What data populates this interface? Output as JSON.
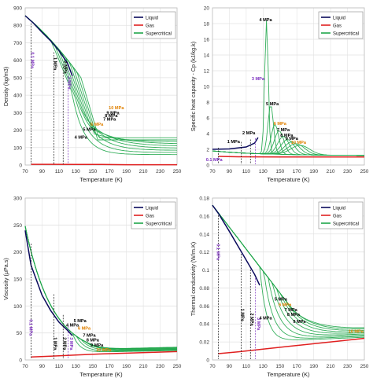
{
  "chart_data": [
    {
      "id": "density",
      "type": "line",
      "xlabel": "Temperature (K)",
      "ylabel": "Density (kg/m3)",
      "xlim": [
        70,
        250
      ],
      "ylim": [
        0,
        900
      ],
      "xticks": [
        "70",
        "90",
        "110",
        "130",
        "150",
        "170",
        "190",
        "210",
        "230",
        "250"
      ],
      "yticks": [
        "0",
        "100",
        "200",
        "300",
        "400",
        "500",
        "600",
        "700",
        "800",
        "900"
      ],
      "legend": [
        "Liquid",
        "Gas",
        "Supercritical"
      ],
      "legend_position": "top-right",
      "grid": true,
      "series": [
        {
          "name": "Liquid",
          "x": [
            70,
            80,
            90,
            100,
            110,
            120,
            126
          ],
          "y": [
            855,
            812,
            760,
            712,
            655,
            585,
            510
          ]
        },
        {
          "name": "Gas",
          "x": [
            77,
            100,
            130,
            160,
            190,
            250
          ],
          "y": [
            4,
            4,
            3,
            3,
            2,
            2
          ]
        }
      ],
      "annotations": [
        {
          "text": "0.1 MPa",
          "color": "#7b2fbf",
          "x": 77,
          "y": 600
        },
        {
          "text": "1 MPa",
          "color": "#000000",
          "x": 104,
          "y": 580
        },
        {
          "text": "2 MPa",
          "color": "#000000",
          "x": 116,
          "y": 560
        },
        {
          "text": "3 MPa",
          "color": "#7b2fbf",
          "x": 121,
          "y": 470
        },
        {
          "text": "10 MPa",
          "color": "#e08000",
          "x": 178,
          "y": 320
        },
        {
          "text": "9 MPa",
          "color": "#000000",
          "x": 174,
          "y": 290
        },
        {
          "text": "8 MPa",
          "color": "#000000",
          "x": 172,
          "y": 275
        },
        {
          "text": "7 MPa",
          "color": "#000000",
          "x": 170,
          "y": 255
        },
        {
          "text": "6 MPa",
          "color": "#e08000",
          "x": 155,
          "y": 225
        },
        {
          "text": "5 MPa",
          "color": "#000000",
          "x": 146,
          "y": 195
        },
        {
          "text": "4 MPa",
          "color": "#000000",
          "x": 136,
          "y": 150
        }
      ]
    },
    {
      "id": "cp",
      "type": "line",
      "xlabel": "Temperature (K)",
      "ylabel": "Specific heat capacity - Cp (kJ/kg.k)",
      "xlim": [
        70,
        250
      ],
      "ylim": [
        0,
        20
      ],
      "xticks": [
        "70",
        "90",
        "110",
        "130",
        "150",
        "170",
        "190",
        "210",
        "230",
        "250"
      ],
      "yticks": [
        "0",
        "2",
        "4",
        "6",
        "8",
        "10",
        "12",
        "14",
        "16",
        "18",
        "20"
      ],
      "legend": [
        "Liquid",
        "Gas",
        "Supercritical"
      ],
      "legend_position": "top-right",
      "grid": true,
      "series": [
        {
          "name": "Liquid",
          "x": [
            70,
            90,
            110,
            120,
            124
          ],
          "y": [
            2.0,
            2.05,
            2.3,
            2.8,
            3.5
          ]
        },
        {
          "name": "Gas",
          "x": [
            77,
            100,
            126,
            150,
            250
          ],
          "y": [
            1.1,
            1.05,
            1.04,
            1.03,
            1.03
          ]
        }
      ],
      "annotations": [
        {
          "text": "4 MPa",
          "color": "#000000",
          "x": 133,
          "y": 18.3
        },
        {
          "text": "3 MPa",
          "color": "#7b2fbf",
          "x": 124,
          "y": 10.8
        },
        {
          "text": "5 MPa",
          "color": "#000000",
          "x": 141,
          "y": 7.6
        },
        {
          "text": "6 MPa",
          "color": "#e08000",
          "x": 150,
          "y": 5.1
        },
        {
          "text": "7 MPa",
          "color": "#000000",
          "x": 154,
          "y": 4.3
        },
        {
          "text": "8 MPa",
          "color": "#000000",
          "x": 158,
          "y": 3.6
        },
        {
          "text": "9 MPa",
          "color": "#000000",
          "x": 164,
          "y": 3.2
        },
        {
          "text": "10 MPa",
          "color": "#e08000",
          "x": 172,
          "y": 2.7
        },
        {
          "text": "2 MPa",
          "color": "#000000",
          "x": 113,
          "y": 3.9
        },
        {
          "text": "1 MPa",
          "color": "#000000",
          "x": 95,
          "y": 2.8
        },
        {
          "text": "0.1 MPa",
          "color": "#7b2fbf",
          "x": 72,
          "y": 0.5
        }
      ]
    },
    {
      "id": "viscosity",
      "type": "line",
      "xlabel": "Temperature (K)",
      "ylabel": "Viscosity (μPa.s)",
      "xlim": [
        70,
        250
      ],
      "ylim": [
        0,
        300
      ],
      "xticks": [
        "70",
        "90",
        "110",
        "130",
        "150",
        "170",
        "190",
        "210",
        "230",
        "250"
      ],
      "yticks": [
        "0",
        "50",
        "100",
        "150",
        "200",
        "250",
        "300"
      ],
      "legend": [
        "Liquid",
        "Gas",
        "Supercritical"
      ],
      "legend_position": "top-right",
      "grid": true,
      "series": [
        {
          "name": "Liquid",
          "x": [
            70,
            77,
            90,
            100,
            110,
            120,
            126
          ],
          "y": [
            240,
            175,
            120,
            92,
            70,
            55,
            45
          ]
        },
        {
          "name": "Gas",
          "x": [
            77,
            100,
            130,
            160,
            190,
            220,
            250
          ],
          "y": [
            5.5,
            7,
            9,
            11,
            12.5,
            14,
            15.5
          ]
        }
      ],
      "annotations": [
        {
          "text": "0.1 MPa",
          "color": "#7b2fbf",
          "x": 75,
          "y": 60
        },
        {
          "text": "1 MPa",
          "color": "#000000",
          "x": 104,
          "y": 30
        },
        {
          "text": "2 MPa",
          "color": "#000000",
          "x": 115,
          "y": 30
        },
        {
          "text": "3 MPa",
          "color": "#7b2fbf",
          "x": 123,
          "y": 30
        },
        {
          "text": "5 MPa",
          "color": "#000000",
          "x": 135,
          "y": 70
        },
        {
          "text": "6 MPa",
          "color": "#e08000",
          "x": 140,
          "y": 56
        },
        {
          "text": "4 MPa",
          "color": "#000000",
          "x": 126,
          "y": 62
        },
        {
          "text": "7 MPa",
          "color": "#000000",
          "x": 146,
          "y": 43
        },
        {
          "text": "8 MPa",
          "color": "#000000",
          "x": 150,
          "y": 34
        },
        {
          "text": "9 MPa",
          "color": "#000000",
          "x": 155,
          "y": 25
        },
        {
          "text": "10 MPa",
          "color": "#e08000",
          "x": 163,
          "y": 16
        }
      ]
    },
    {
      "id": "conductivity",
      "type": "line",
      "xlabel": "Temperature (K)",
      "ylabel": "Thermal conductivity (W/m.K)",
      "xlim": [
        70,
        250
      ],
      "ylim": [
        0,
        0.18
      ],
      "xticks": [
        "70",
        "90",
        "110",
        "130",
        "150",
        "170",
        "190",
        "210",
        "230",
        "250"
      ],
      "yticks": [
        "0",
        "0.02",
        "0.04",
        "0.06",
        "0.08",
        "0.1",
        "0.12",
        "0.14",
        "0.16",
        "0.18"
      ],
      "legend": [
        "Liquid",
        "Gas",
        "Supercritical"
      ],
      "legend_position": "top-right",
      "grid": true,
      "series": [
        {
          "name": "Liquid",
          "x": [
            70,
            77,
            90,
            100,
            110,
            120,
            126
          ],
          "y": [
            0.172,
            0.163,
            0.143,
            0.127,
            0.111,
            0.095,
            0.083
          ]
        },
        {
          "name": "Gas",
          "x": [
            77,
            100,
            130,
            160,
            190,
            220,
            250
          ],
          "y": [
            0.007,
            0.009,
            0.012,
            0.015,
            0.018,
            0.021,
            0.024
          ]
        }
      ],
      "annotations": [
        {
          "text": "0.1 MPa",
          "color": "#7b2fbf",
          "x": 75,
          "y": 0.12
        },
        {
          "text": "1 MPa",
          "color": "#000000",
          "x": 104,
          "y": 0.05
        },
        {
          "text": "2 MPa",
          "color": "#000000",
          "x": 115,
          "y": 0.045
        },
        {
          "text": "3 MPa",
          "color": "#7b2fbf",
          "x": 123,
          "y": 0.04
        },
        {
          "text": "4 MPa",
          "color": "#000000",
          "x": 133,
          "y": 0.045
        },
        {
          "text": "5 MPa",
          "color": "#000000",
          "x": 151,
          "y": 0.066
        },
        {
          "text": "6 MPa",
          "color": "#e08000",
          "x": 156,
          "y": 0.06
        },
        {
          "text": "7 MPa",
          "color": "#000000",
          "x": 163,
          "y": 0.054
        },
        {
          "text": "8 MPa",
          "color": "#000000",
          "x": 166,
          "y": 0.049
        },
        {
          "text": "9 MPa",
          "color": "#000000",
          "x": 173,
          "y": 0.041
        },
        {
          "text": "10 MPa",
          "color": "#e08000",
          "x": 240,
          "y": 0.03
        }
      ]
    }
  ],
  "colors": {
    "liquid": "#0a0a5c",
    "gas": "#e02020",
    "supercritical": "#1fa64a",
    "purple": "#7b2fbf",
    "orange": "#e08000",
    "grid": "#e2e2e2",
    "axis": "#555555"
  }
}
